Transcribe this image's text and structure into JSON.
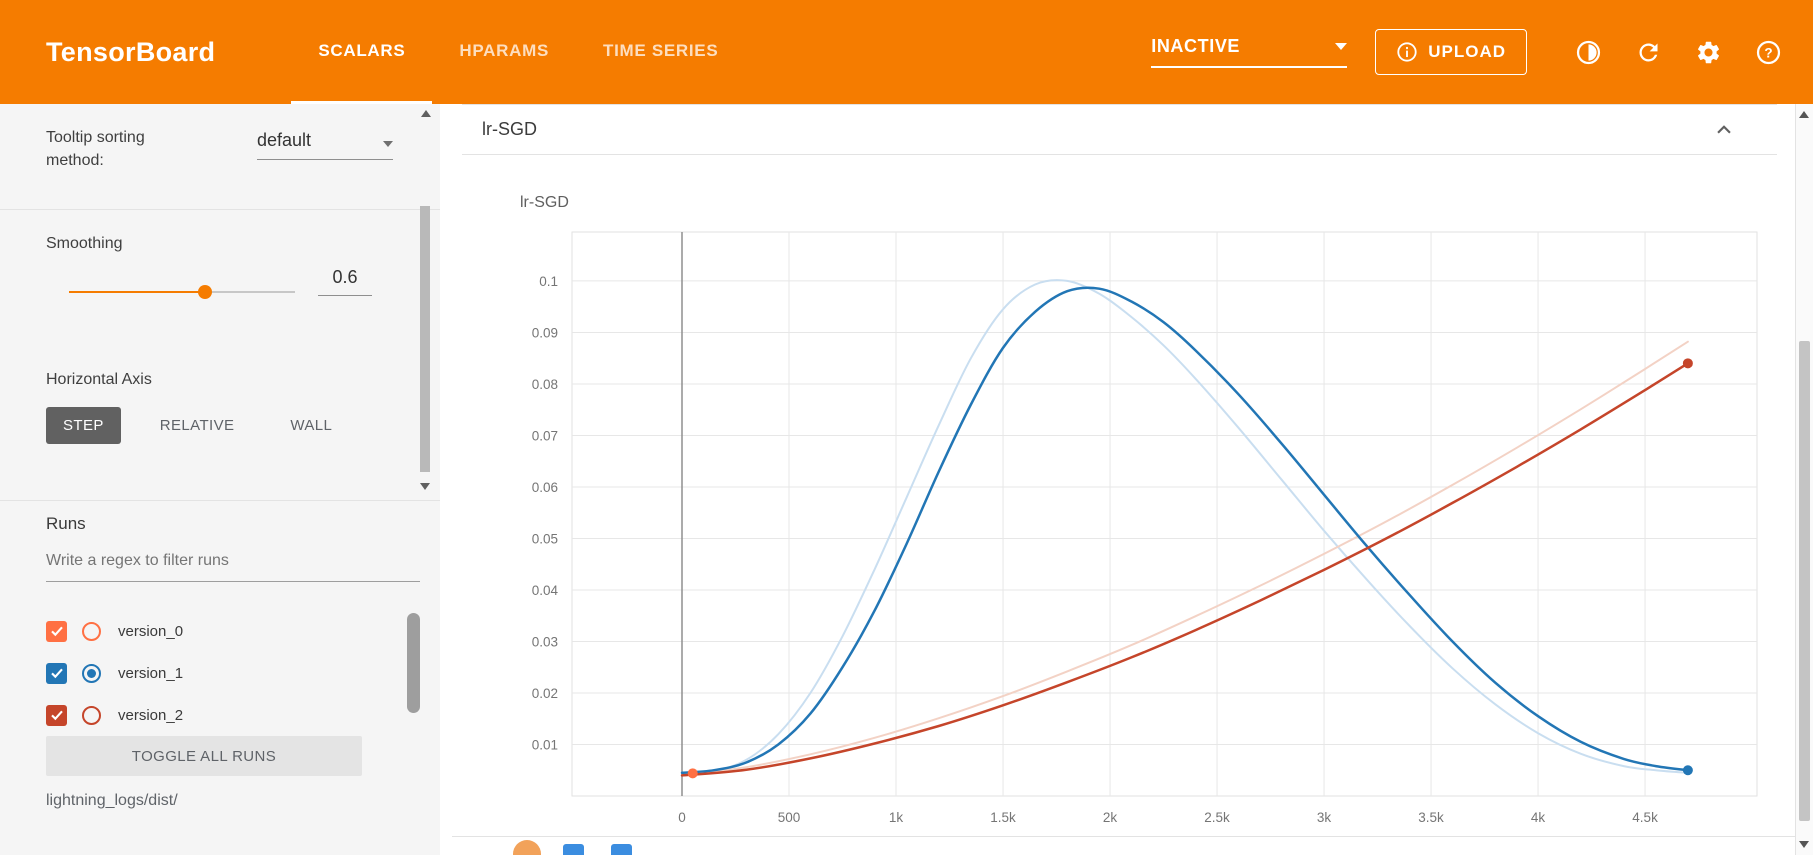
{
  "topbar": {
    "title": "TensorBoard",
    "tabs": [
      {
        "label": "SCALARS",
        "active": true
      },
      {
        "label": "HPARAMS",
        "active": false
      },
      {
        "label": "TIME SERIES",
        "active": false
      }
    ],
    "status": "INACTIVE",
    "upload_label": "UPLOAD"
  },
  "sidebar": {
    "tooltip_sorting_label": "Tooltip sorting method:",
    "tooltip_sorting_value": "default",
    "smoothing_label": "Smoothing",
    "smoothing_value": "0.6",
    "horizontal_axis_label": "Horizontal Axis",
    "axis_options": [
      {
        "label": "STEP",
        "active": true
      },
      {
        "label": "RELATIVE",
        "active": false
      },
      {
        "label": "WALL",
        "active": false
      }
    ],
    "runs_label": "Runs",
    "filter_placeholder": "Write a regex to filter runs",
    "runs": [
      {
        "name": "version_0",
        "color": "#ff7043",
        "checked": true,
        "radio_selected": false
      },
      {
        "name": "version_1",
        "color": "#2276b5",
        "checked": true,
        "radio_selected": true
      },
      {
        "name": "version_2",
        "color": "#c5452a",
        "checked": true,
        "radio_selected": false
      }
    ],
    "toggle_all_label": "TOGGLE ALL RUNS",
    "log_path": "lightning_logs/dist/"
  },
  "main": {
    "card_title": "lr-SGD"
  },
  "chart_data": {
    "type": "line",
    "title": "lr-SGD",
    "xlim": [
      -514,
      5023
    ],
    "ylim": [
      0,
      0.1095
    ],
    "grid": true,
    "xticks": [
      {
        "v": 0,
        "label": "0"
      },
      {
        "v": 500,
        "label": "500"
      },
      {
        "v": 1000,
        "label": "1k"
      },
      {
        "v": 1500,
        "label": "1.5k"
      },
      {
        "v": 2000,
        "label": "2k"
      },
      {
        "v": 2500,
        "label": "2.5k"
      },
      {
        "v": 3000,
        "label": "3k"
      },
      {
        "v": 3500,
        "label": "3.5k"
      },
      {
        "v": 4000,
        "label": "4k"
      },
      {
        "v": 4500,
        "label": "4.5k"
      }
    ],
    "yticks": [
      {
        "v": 0.01,
        "label": "0.01"
      },
      {
        "v": 0.02,
        "label": "0.02"
      },
      {
        "v": 0.03,
        "label": "0.03"
      },
      {
        "v": 0.04,
        "label": "0.04"
      },
      {
        "v": 0.05,
        "label": "0.05"
      },
      {
        "v": 0.06,
        "label": "0.06"
      },
      {
        "v": 0.07,
        "label": "0.07"
      },
      {
        "v": 0.08,
        "label": "0.08"
      },
      {
        "v": 0.09,
        "label": "0.09"
      },
      {
        "v": 0.1,
        "label": "0.1"
      }
    ],
    "zero_line_x": 0,
    "series": [
      {
        "name": "version_1 (unsmoothed)",
        "color": "#c9def0",
        "width": 2,
        "x": [
          0,
          150,
          300,
          450,
          600,
          750,
          900,
          1050,
          1200,
          1350,
          1500,
          1650,
          1800,
          1950,
          2100,
          2250,
          2400,
          2600,
          2800,
          3000,
          3200,
          3400,
          3600,
          3800,
          4000,
          4200,
          4400,
          4550,
          4700
        ],
        "y": [
          0.004,
          0.0048,
          0.007,
          0.012,
          0.02,
          0.031,
          0.044,
          0.058,
          0.072,
          0.085,
          0.0945,
          0.0993,
          0.1,
          0.0975,
          0.093,
          0.0875,
          0.081,
          0.0715,
          0.0615,
          0.0515,
          0.042,
          0.033,
          0.0248,
          0.0178,
          0.0122,
          0.0082,
          0.0058,
          0.005,
          0.0045
        ]
      },
      {
        "name": "version_2 (unsmoothed)",
        "color": "#f3d2c5",
        "width": 2,
        "x": [
          0,
          300,
          600,
          900,
          1200,
          1500,
          1800,
          2100,
          2400,
          2700,
          3000,
          3300,
          3600,
          3900,
          4200,
          4500,
          4700
        ],
        "y": [
          0.004,
          0.0056,
          0.0081,
          0.0113,
          0.0151,
          0.0194,
          0.0242,
          0.0293,
          0.0349,
          0.0408,
          0.047,
          0.0535,
          0.0604,
          0.0676,
          0.0751,
          0.0829,
          0.0882
        ]
      },
      {
        "name": "version_1",
        "color": "#2276b5",
        "width": 2.5,
        "end_marker": true,
        "x": [
          0,
          150,
          300,
          450,
          600,
          750,
          900,
          1050,
          1200,
          1350,
          1500,
          1650,
          1800,
          1950,
          2100,
          2250,
          2400,
          2600,
          2800,
          3000,
          3200,
          3400,
          3600,
          3800,
          4000,
          4200,
          4400,
          4550,
          4700
        ],
        "y": [
          0.0045,
          0.005,
          0.0065,
          0.01,
          0.016,
          0.025,
          0.036,
          0.049,
          0.063,
          0.076,
          0.087,
          0.094,
          0.098,
          0.0985,
          0.096,
          0.092,
          0.0865,
          0.078,
          0.0685,
          0.0585,
          0.0485,
          0.039,
          0.03,
          0.022,
          0.0155,
          0.0105,
          0.0072,
          0.0058,
          0.005
        ]
      },
      {
        "name": "version_2",
        "color": "#c5452a",
        "width": 2.5,
        "end_marker": true,
        "x": [
          0,
          300,
          600,
          900,
          1200,
          1500,
          1800,
          2100,
          2400,
          2700,
          3000,
          3300,
          3600,
          3900,
          4200,
          4500,
          4700
        ],
        "y": [
          0.004,
          0.0051,
          0.0073,
          0.0102,
          0.0136,
          0.0176,
          0.0221,
          0.0269,
          0.0322,
          0.0379,
          0.0439,
          0.0502,
          0.0569,
          0.0639,
          0.0712,
          0.0788,
          0.084
        ]
      },
      {
        "name": "version_0",
        "color": "#ff7043",
        "marker_only": true,
        "x": [
          50
        ],
        "y": [
          0.0044
        ]
      }
    ]
  }
}
